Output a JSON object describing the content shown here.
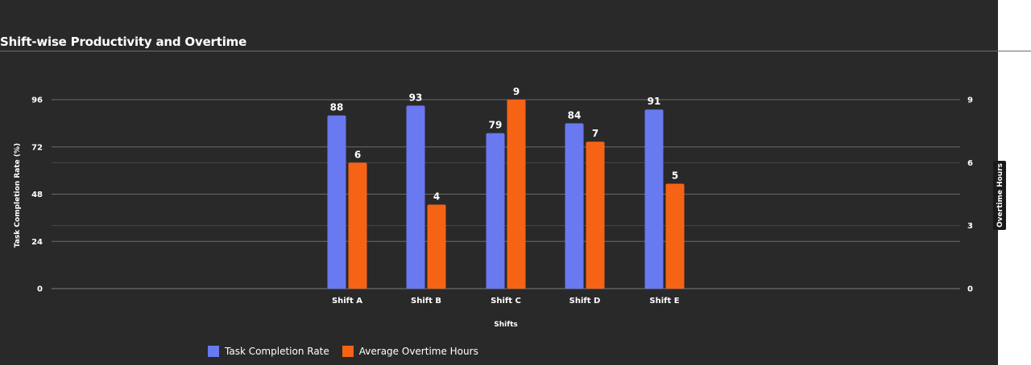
{
  "chart_data": {
    "type": "bar",
    "title": "Shift-wise Productivity and Overtime",
    "xlabel": "Shifts",
    "ylabel": "Task Completion Rate (%)",
    "y2label": "Overtime Hours",
    "categories": [
      "Shift A",
      "Shift B",
      "Shift C",
      "Shift D",
      "Shift E"
    ],
    "series": [
      {
        "name": "Task Completion Rate",
        "axis": "left",
        "color": "#6979f0",
        "values": [
          88,
          93,
          79,
          84,
          91
        ]
      },
      {
        "name": "Average Overtime Hours",
        "axis": "right",
        "color": "#f76315",
        "values": [
          6,
          4,
          9,
          7,
          5
        ]
      }
    ],
    "ylim": [
      0,
      96
    ],
    "y_ticks": [
      0,
      24,
      48,
      72,
      96
    ],
    "y2lim": [
      0,
      9
    ],
    "y2_ticks": [
      0,
      3,
      6,
      9
    ],
    "grid": true,
    "legend_position": "bottom-left"
  },
  "colors": {
    "background": "#292929",
    "gridline": "#555555",
    "text": "#ffffff"
  }
}
